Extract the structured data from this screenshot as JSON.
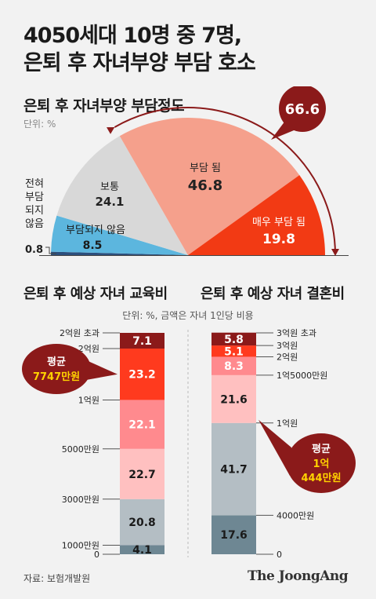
{
  "headline": {
    "line1": "4050세대 10명 중 7명,",
    "line2": "은퇴 후 자녀부양 부담 호소"
  },
  "source": "자료: 보험개발원",
  "brand": "The JoongAng",
  "colors": {
    "background": "#f2f2f2",
    "dark_red": "#8b1a1a",
    "red": "#f23a14",
    "salmon": "#f5a08c",
    "light_gray": "#d8d8d8",
    "sky_blue": "#5cb6de",
    "navy": "#2c4f7c",
    "yellow_text": "#ffd200"
  },
  "chart_data": [
    {
      "type": "pie",
      "title": "은퇴 후 자녀부양 부담정도",
      "unit": "단위: %",
      "slices": [
        {
          "label": "전혀 부담되지 않음",
          "label_lines": [
            "전혀",
            "부담",
            "되지",
            "않음"
          ],
          "value": 0.8,
          "display": "0.8",
          "color": "#2c4f7c"
        },
        {
          "label": "부담되지 않음",
          "value": 8.5,
          "display": "8.5",
          "color": "#5cb6de"
        },
        {
          "label": "보통",
          "value": 24.1,
          "display": "24.1",
          "color": "#d8d8d8"
        },
        {
          "label": "부담 됨",
          "value": 46.8,
          "display": "46.8",
          "color": "#f5a08c"
        },
        {
          "label": "매우 부담 됨",
          "value": 19.8,
          "display": "19.8",
          "color": "#f23a14"
        }
      ],
      "callout": {
        "value": "66.6",
        "color": "#8b1a1a"
      }
    },
    {
      "type": "bar",
      "title": "은퇴 후 예상 자녀 교육비",
      "unit": "단위: %, 금액은 자녀 1인당 비용",
      "categories": [
        "1000만원 미만",
        "1000만~3000만원",
        "3000만~5000만원",
        "5000만~1억원",
        "1억~2억원",
        "2억원 초과"
      ],
      "values": [
        4.1,
        20.8,
        22.7,
        22.1,
        23.2,
        7.1
      ],
      "displays": [
        "4.1",
        "20.8",
        "22.7",
        "22.1",
        "23.2",
        "7.1"
      ],
      "colors": [
        "#6e8793",
        "#b4bec4",
        "#ffc0c0",
        "#ff8a8e",
        "#ff3a1e",
        "#8b1a1a"
      ],
      "ticks": [
        {
          "label": "0",
          "at": 0
        },
        {
          "label": "1000만원",
          "at": 4.1
        },
        {
          "label": "3000만원",
          "at": 24.9
        },
        {
          "label": "5000만원",
          "at": 47.6
        },
        {
          "label": "1억원",
          "at": 69.7
        },
        {
          "label": "2억원",
          "at": 92.9
        },
        {
          "label": "2억원 초과",
          "at": 100
        }
      ],
      "average": {
        "label": "평균",
        "value": "7747만원",
        "at": 81.3
      }
    },
    {
      "type": "bar",
      "title": "은퇴 후 예상 자녀 결혼비",
      "categories": [
        "4000만원 미만",
        "4000만~1억원",
        "1억~1억5000만원",
        "1억5000만~2억원",
        "2억~3억원",
        "3억원 초과"
      ],
      "values": [
        17.6,
        41.7,
        21.6,
        8.3,
        5.1,
        5.8
      ],
      "displays": [
        "17.6",
        "41.7",
        "21.6",
        "8.3",
        "5.1",
        "5.8"
      ],
      "colors": [
        "#6e8793",
        "#b4bec4",
        "#ffc0c0",
        "#ff8a8e",
        "#ff3a1e",
        "#8b1a1a"
      ],
      "ticks": [
        {
          "label": "0",
          "at": 0
        },
        {
          "label": "4000만원",
          "at": 17.6
        },
        {
          "label": "1억원",
          "at": 59.3
        },
        {
          "label": "1억5000만원",
          "at": 80.9
        },
        {
          "label": "2억원",
          "at": 89.2
        },
        {
          "label": "3억원",
          "at": 94.3
        },
        {
          "label": "3억원 초과",
          "at": 100
        }
      ],
      "average": {
        "label": "평균",
        "value_lines": [
          "1억",
          "444만원"
        ],
        "at": 59.3
      }
    }
  ]
}
